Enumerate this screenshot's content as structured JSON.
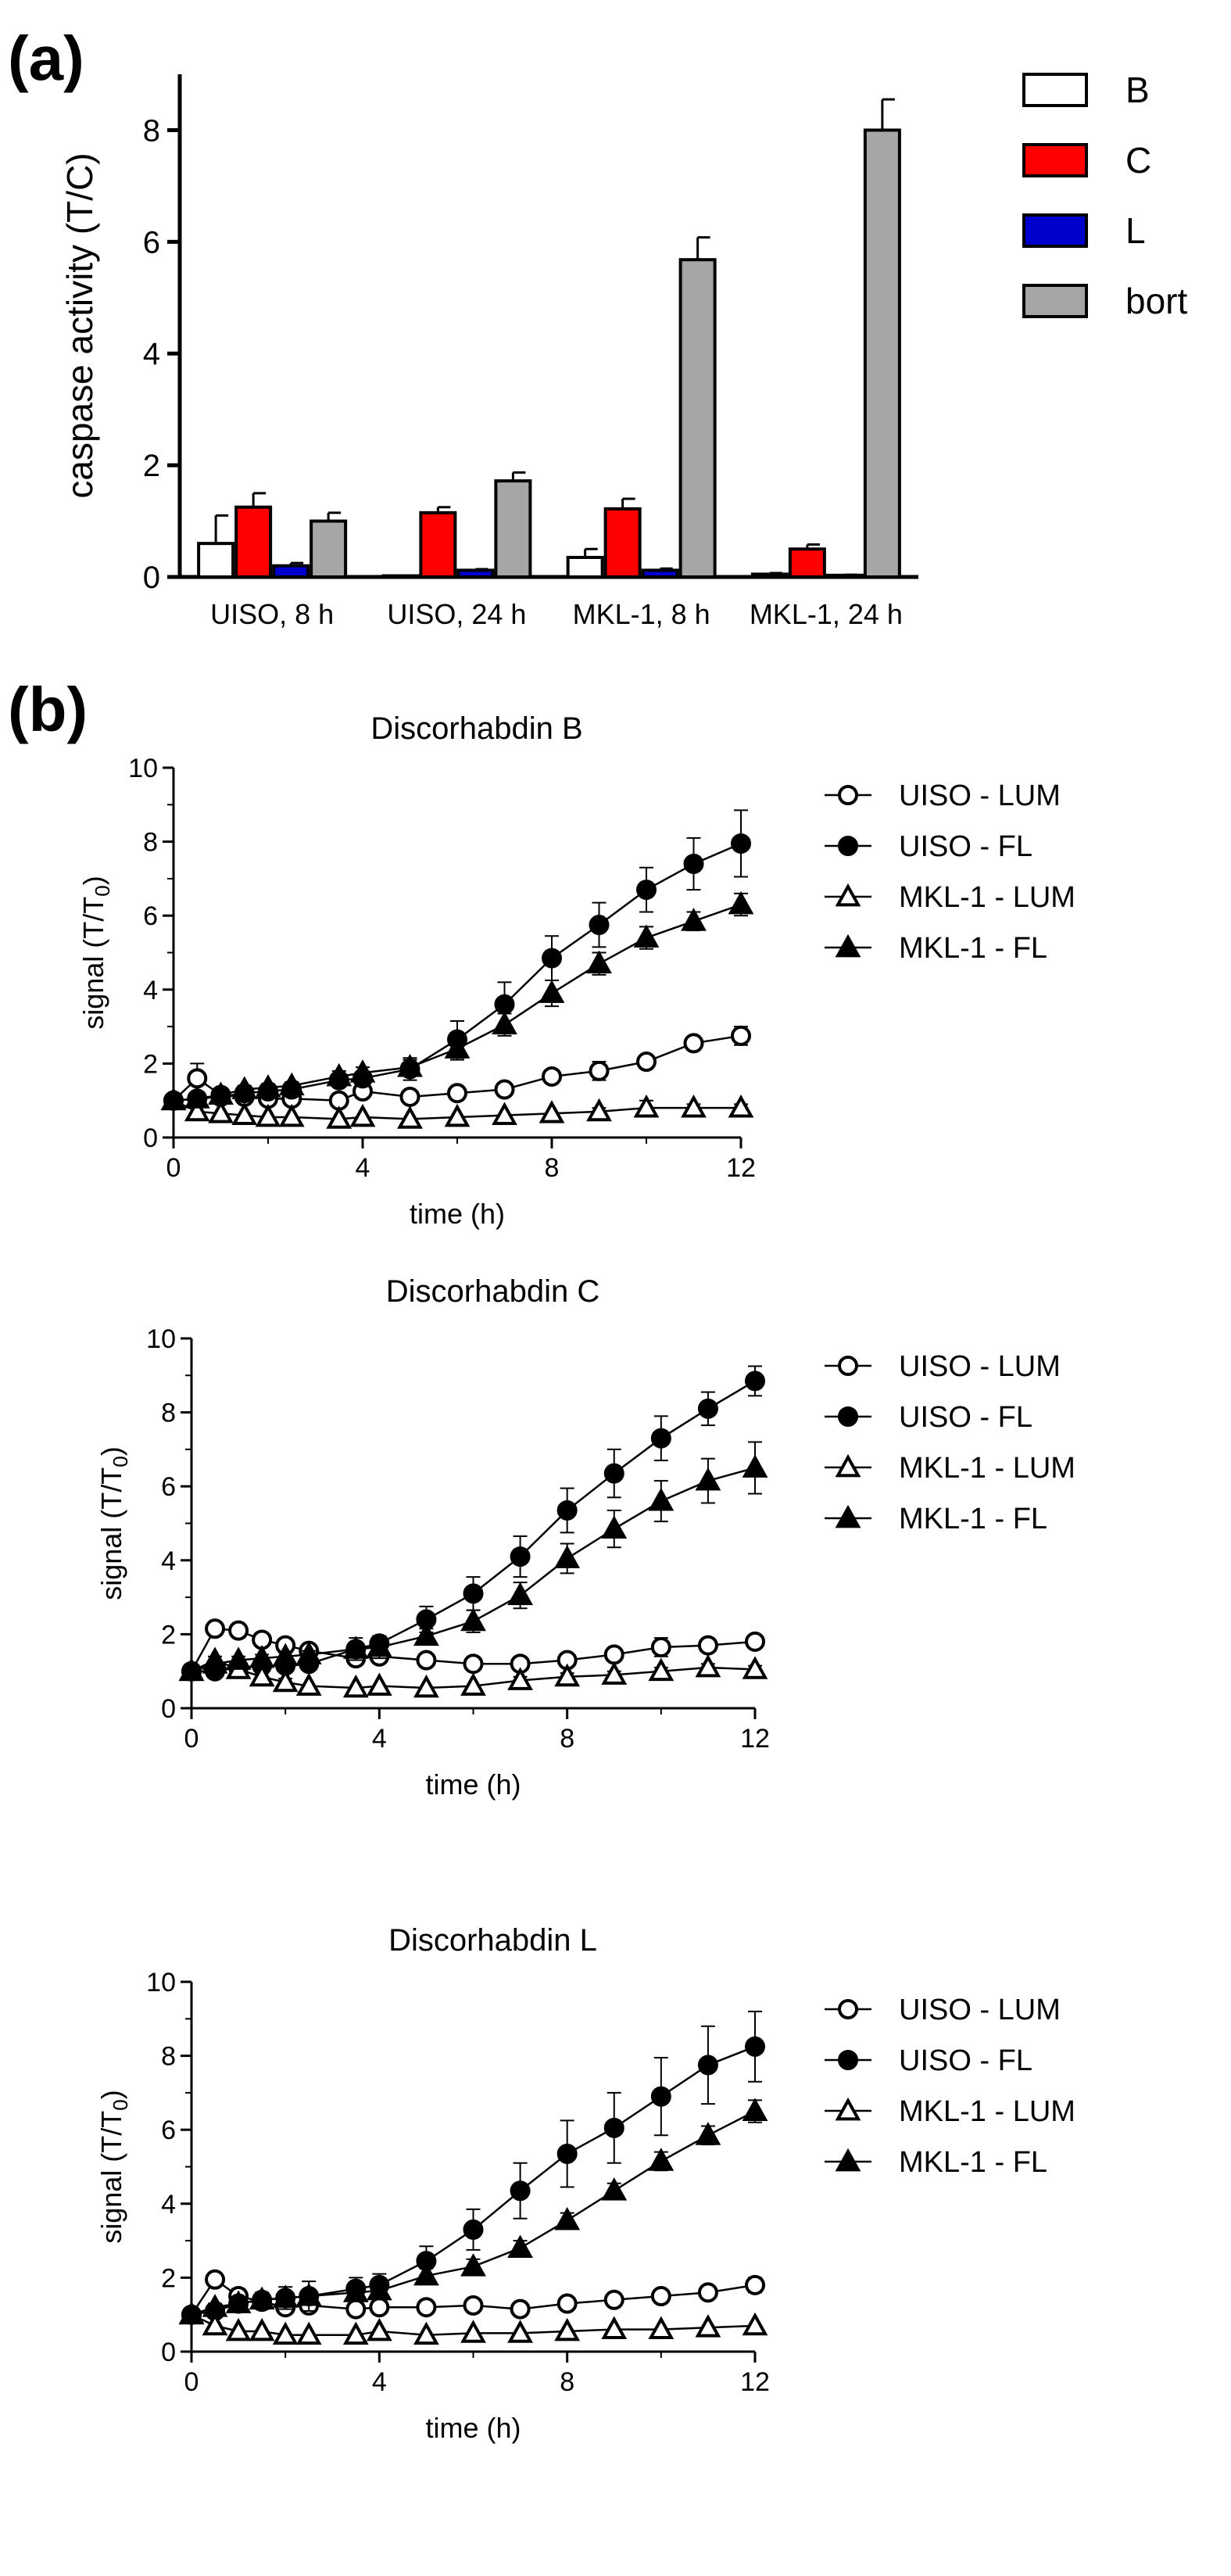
{
  "figure": {
    "panel_a_label": "(a)",
    "panel_b_label": "(b)"
  },
  "colors": {
    "B": "#ffffff",
    "C": "#ff0000",
    "L": "#0000cc",
    "bort": "#a6a6a6"
  },
  "chart_data": [
    {
      "id": "a",
      "type": "bar",
      "title": "",
      "xlabel": "",
      "ylabel": "caspase activity  (T/C)",
      "ylim": [
        0,
        9
      ],
      "yticks": [
        0,
        2,
        4,
        6,
        8
      ],
      "categories": [
        "UISO, 8 h",
        "UISO, 24 h",
        "MKL-1, 8 h",
        "MKL-1, 24 h"
      ],
      "series": [
        {
          "name": "B",
          "values": [
            0.6,
            0.02,
            0.35,
            0.05
          ],
          "errors": [
            0.5,
            0,
            0.15,
            0.02
          ]
        },
        {
          "name": "C",
          "values": [
            1.25,
            1.15,
            1.22,
            0.5
          ],
          "errors": [
            0.25,
            0.1,
            0.18,
            0.08
          ]
        },
        {
          "name": "L",
          "values": [
            0.2,
            0.12,
            0.12,
            0.03
          ],
          "errors": [
            0.05,
            0.02,
            0.03,
            0.01
          ]
        },
        {
          "name": "bort",
          "values": [
            1.0,
            1.72,
            5.68,
            8.0
          ],
          "errors": [
            0.15,
            0.15,
            0.4,
            0.55
          ]
        }
      ],
      "legend": "right"
    },
    {
      "id": "b1",
      "type": "line",
      "title": "Discorhabdin B",
      "xlabel": "time (h)",
      "ylabel": "signal (T/T0)",
      "xlim": [
        0,
        12
      ],
      "ylim": [
        0,
        10
      ],
      "xticks": [
        0,
        4,
        8,
        12
      ],
      "yticks": [
        0,
        2,
        4,
        6,
        8,
        10
      ],
      "x": [
        0,
        0.5,
        1,
        1.5,
        2,
        2.5,
        3.5,
        4,
        5,
        6,
        7,
        8,
        9,
        10,
        11,
        12
      ],
      "series": [
        {
          "name": "UISO - LUM",
          "marker": "open-circle",
          "values": [
            1.0,
            1.6,
            1.15,
            1.1,
            1.05,
            1.05,
            1.0,
            1.25,
            1.1,
            1.2,
            1.3,
            1.65,
            1.8,
            2.05,
            2.55,
            2.75
          ],
          "errors": [
            0.1,
            0.4,
            0.1,
            0.1,
            0.1,
            0.1,
            0.1,
            0.1,
            0.1,
            0.1,
            0.1,
            0.1,
            0.25,
            0.1,
            0.15,
            0.25
          ]
        },
        {
          "name": "UISO - FL",
          "marker": "filled-circle",
          "values": [
            1.0,
            1.05,
            1.1,
            1.2,
            1.25,
            1.3,
            1.55,
            1.6,
            1.85,
            2.65,
            3.6,
            4.85,
            5.75,
            6.7,
            7.4,
            7.95
          ],
          "errors": [
            0.1,
            0.1,
            0.1,
            0.1,
            0.1,
            0.1,
            0.1,
            0.15,
            0.3,
            0.5,
            0.6,
            0.6,
            0.6,
            0.6,
            0.7,
            0.9
          ]
        },
        {
          "name": "MKL-1 - LUM",
          "marker": "open-triangle",
          "values": [
            1.0,
            0.7,
            0.65,
            0.6,
            0.55,
            0.55,
            0.5,
            0.55,
            0.5,
            0.55,
            0.6,
            0.65,
            0.7,
            0.8,
            0.8,
            0.8
          ],
          "errors": [
            0.1,
            0.05,
            0.05,
            0.05,
            0.05,
            0.05,
            0.05,
            0.05,
            0.05,
            0.05,
            0.05,
            0.05,
            0.1,
            0.2,
            0.1,
            0.1
          ]
        },
        {
          "name": "MKL-1 - FL",
          "marker": "filled-triangle",
          "values": [
            1.0,
            1.05,
            1.15,
            1.3,
            1.35,
            1.4,
            1.65,
            1.75,
            1.9,
            2.4,
            3.05,
            3.9,
            4.7,
            5.4,
            5.85,
            6.3
          ],
          "errors": [
            0.1,
            0.1,
            0.1,
            0.1,
            0.1,
            0.1,
            0.15,
            0.15,
            0.2,
            0.3,
            0.3,
            0.35,
            0.3,
            0.3,
            0.25,
            0.3
          ]
        }
      ],
      "legend": "right"
    },
    {
      "id": "b2",
      "type": "line",
      "title": "Discorhabdin C",
      "xlabel": "time (h)",
      "ylabel": "signal (T/T0)",
      "xlim": [
        0,
        12
      ],
      "ylim": [
        0,
        10
      ],
      "xticks": [
        0,
        4,
        8,
        12
      ],
      "yticks": [
        0,
        2,
        4,
        6,
        8,
        10
      ],
      "x": [
        0,
        0.5,
        1,
        1.5,
        2,
        2.5,
        3.5,
        4,
        5,
        6,
        7,
        8,
        9,
        10,
        11,
        12
      ],
      "series": [
        {
          "name": "UISO - LUM",
          "marker": "open-circle",
          "values": [
            1.0,
            2.15,
            2.1,
            1.85,
            1.7,
            1.55,
            1.35,
            1.4,
            1.3,
            1.2,
            1.2,
            1.3,
            1.45,
            1.65,
            1.7,
            1.8
          ],
          "errors": [
            0.1,
            0.1,
            0.1,
            0.1,
            0.1,
            0.1,
            0.1,
            0.1,
            0.1,
            0.1,
            0.1,
            0.1,
            0.1,
            0.25,
            0.15,
            0.1
          ]
        },
        {
          "name": "UISO - FL",
          "marker": "filled-circle",
          "values": [
            1.0,
            1.0,
            1.1,
            1.15,
            1.15,
            1.2,
            1.6,
            1.75,
            2.4,
            3.1,
            4.1,
            5.35,
            6.35,
            7.3,
            8.1,
            8.85
          ],
          "errors": [
            0.1,
            0.1,
            0.1,
            0.1,
            0.1,
            0.1,
            0.15,
            0.2,
            0.35,
            0.45,
            0.55,
            0.6,
            0.65,
            0.6,
            0.45,
            0.4
          ]
        },
        {
          "name": "MKL-1 - LUM",
          "marker": "open-triangle",
          "values": [
            1.0,
            1.3,
            1.05,
            0.85,
            0.7,
            0.6,
            0.55,
            0.6,
            0.55,
            0.6,
            0.75,
            0.85,
            0.9,
            1.0,
            1.1,
            1.05
          ],
          "errors": [
            0.1,
            0.1,
            0.1,
            0.1,
            0.1,
            0.05,
            0.05,
            0.05,
            0.05,
            0.05,
            0.1,
            0.1,
            0.1,
            0.1,
            0.1,
            0.1
          ]
        },
        {
          "name": "MKL-1 - FL",
          "marker": "filled-triangle",
          "values": [
            1.0,
            1.2,
            1.3,
            1.35,
            1.4,
            1.45,
            1.6,
            1.65,
            1.95,
            2.35,
            3.05,
            4.05,
            4.85,
            5.6,
            6.15,
            6.5
          ],
          "errors": [
            0.1,
            0.1,
            0.1,
            0.1,
            0.1,
            0.1,
            0.3,
            0.3,
            0.2,
            0.3,
            0.35,
            0.4,
            0.5,
            0.55,
            0.6,
            0.7
          ]
        }
      ],
      "legend": "right"
    },
    {
      "id": "b3",
      "type": "line",
      "title": "Discorhabdin L",
      "xlabel": "time (h)",
      "ylabel": "signal (T/T0)",
      "xlim": [
        0,
        12
      ],
      "ylim": [
        0,
        10
      ],
      "xticks": [
        0,
        4,
        8,
        12
      ],
      "yticks": [
        0,
        2,
        4,
        6,
        8,
        10
      ],
      "x": [
        0,
        0.5,
        1,
        1.5,
        2,
        2.5,
        3.5,
        4,
        5,
        6,
        7,
        8,
        9,
        10,
        11,
        12
      ],
      "series": [
        {
          "name": "UISO - LUM",
          "marker": "open-circle",
          "values": [
            1.0,
            1.95,
            1.5,
            1.35,
            1.2,
            1.25,
            1.15,
            1.2,
            1.2,
            1.25,
            1.15,
            1.3,
            1.4,
            1.5,
            1.6,
            1.8
          ],
          "errors": [
            0.1,
            0.1,
            0.2,
            0.2,
            0.1,
            0.15,
            0.1,
            0.1,
            0.1,
            0.1,
            0.1,
            0.1,
            0.1,
            0.1,
            0.1,
            0.2
          ]
        },
        {
          "name": "UISO - FL",
          "marker": "filled-circle",
          "values": [
            1.0,
            1.1,
            1.3,
            1.4,
            1.45,
            1.5,
            1.7,
            1.8,
            2.45,
            3.3,
            4.35,
            5.35,
            6.05,
            6.9,
            7.75,
            8.25
          ],
          "errors": [
            0.1,
            0.1,
            0.15,
            0.2,
            0.3,
            0.4,
            0.3,
            0.3,
            0.4,
            0.55,
            0.75,
            0.9,
            0.95,
            1.05,
            1.05,
            0.95
          ]
        },
        {
          "name": "MKL-1 - LUM",
          "marker": "open-triangle",
          "values": [
            1.0,
            0.7,
            0.55,
            0.55,
            0.45,
            0.45,
            0.45,
            0.55,
            0.45,
            0.5,
            0.5,
            0.55,
            0.6,
            0.6,
            0.65,
            0.7
          ],
          "errors": [
            0.1,
            0.05,
            0.05,
            0.05,
            0.05,
            0.05,
            0.05,
            0.05,
            0.05,
            0.05,
            0.05,
            0.05,
            0.05,
            0.05,
            0.05,
            0.05
          ]
        },
        {
          "name": "MKL-1 - FL",
          "marker": "filled-triangle",
          "values": [
            1.0,
            1.2,
            1.3,
            1.4,
            1.45,
            1.5,
            1.6,
            1.65,
            2.05,
            2.3,
            2.8,
            3.55,
            4.35,
            5.15,
            5.85,
            6.5
          ],
          "errors": [
            0.1,
            0.1,
            0.1,
            0.1,
            0.1,
            0.1,
            0.15,
            0.15,
            0.2,
            0.2,
            0.2,
            0.2,
            0.2,
            0.25,
            0.25,
            0.3
          ]
        }
      ],
      "legend": "right"
    }
  ]
}
